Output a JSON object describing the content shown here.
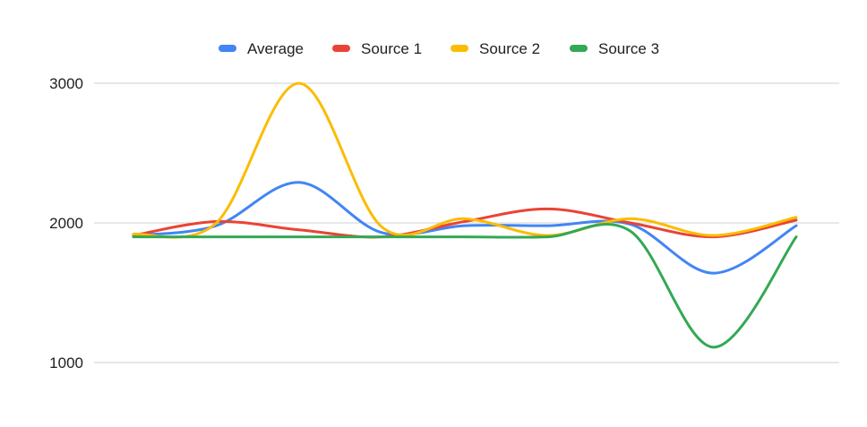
{
  "chart_data": {
    "type": "line",
    "title": "",
    "xlabel": "",
    "ylabel": "",
    "x": [
      1,
      2,
      3,
      4,
      5,
      6,
      7,
      8,
      9
    ],
    "ylim": [
      1000,
      3000
    ],
    "yticks": [
      3000,
      2000,
      1000
    ],
    "grid": true,
    "legend": "top-center",
    "smooth": true,
    "series": [
      {
        "name": "Average",
        "color": "#4285F4",
        "values": [
          1910,
          1980,
          2290,
          1930,
          1980,
          1980,
          1990,
          1640,
          1980
        ]
      },
      {
        "name": "Source 1",
        "color": "#EA4335",
        "values": [
          1910,
          2010,
          1950,
          1900,
          2010,
          2100,
          2000,
          1900,
          2020
        ]
      },
      {
        "name": "Source 2",
        "color": "#FBBC04",
        "values": [
          1920,
          2000,
          3000,
          1970,
          2030,
          1910,
          2030,
          1910,
          2040
        ]
      },
      {
        "name": "Source 3",
        "color": "#34A853",
        "values": [
          1900,
          1900,
          1900,
          1900,
          1900,
          1900,
          1940,
          1110,
          1900
        ]
      }
    ]
  }
}
